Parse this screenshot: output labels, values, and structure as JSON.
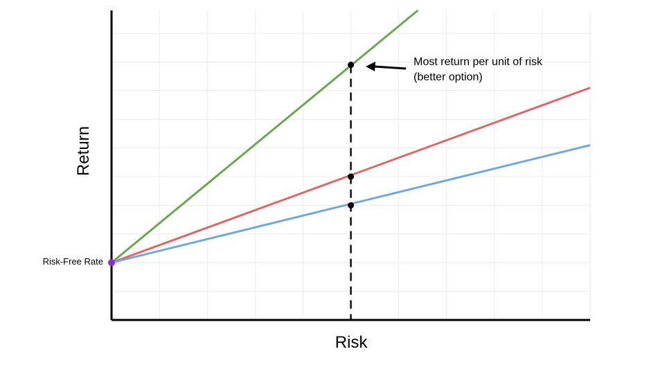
{
  "chart_data": {
    "type": "line",
    "title": "",
    "xlabel": "Risk",
    "ylabel": "Return",
    "xlim": [
      0,
      10
    ],
    "ylim": [
      0,
      10.8
    ],
    "grid": true,
    "legend": "none",
    "risk_free_rate": {
      "label": "Risk-Free Rate",
      "value": 2,
      "color": "#8a2be2"
    },
    "series": [
      {
        "x": [
          0,
          6.4
        ],
        "y": [
          2,
          10.8
        ],
        "color": "#6aa84f"
      },
      {
        "x": [
          0,
          10
        ],
        "y": [
          2,
          8.1
        ],
        "color": "#e06666"
      },
      {
        "x": [
          0,
          10
        ],
        "y": [
          2,
          6.1
        ],
        "color": "#6fa8dc"
      }
    ],
    "marker_x": 5,
    "markers": [
      {
        "x": 5,
        "y": 8.9
      },
      {
        "x": 5,
        "y": 5.0
      },
      {
        "x": 5,
        "y": 4.0
      }
    ],
    "annotation": {
      "lines": [
        "Most return per unit of risk",
        "(better option)"
      ],
      "points_to": {
        "x": 5,
        "y": 8.9
      }
    }
  }
}
